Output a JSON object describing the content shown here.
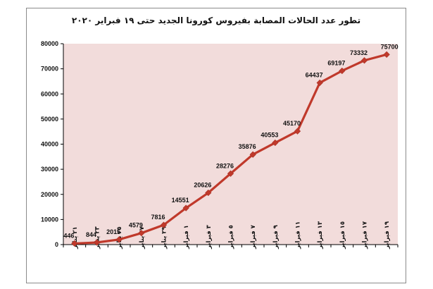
{
  "chart_data": {
    "type": "line",
    "title": "تطور عدد الحالات المصابة بفيروس كورونا الجديد حتى ١٩ فبراير ٢٠٢٠",
    "categories": [
      "٢١ يناير",
      "٢٣ يناير",
      "٢٥ يناير",
      "٢٧ يناير",
      "٢٩ يناير",
      "١ فبراير",
      "٣ فبراير",
      "٥ فبراير",
      "٧ فبراير",
      "٩ فبراير",
      "١١ فبراير",
      "١٣ فبراير",
      "١٥ فبراير",
      "١٧ فبراير",
      "١٩ فبراير"
    ],
    "values": [
      446,
      844,
      2015,
      4579,
      7816,
      14551,
      20626,
      28276,
      35876,
      40553,
      45170,
      64437,
      69197,
      73332,
      75700
    ],
    "data_labels": [
      "446",
      "844",
      "2015",
      "4579",
      "7816",
      "14551",
      "20626",
      "28276",
      "35876",
      "40553",
      "45170",
      "64437",
      "69197",
      "73332",
      "75700"
    ],
    "ylim": [
      0,
      80000
    ],
    "yticks": [
      0,
      10000,
      20000,
      30000,
      40000,
      50000,
      60000,
      70000,
      80000
    ],
    "ytick_labels": [
      "0",
      "10000",
      "20000",
      "30000",
      "40000",
      "50000",
      "60000",
      "70000",
      "80000"
    ],
    "xlabel": "",
    "ylabel": "",
    "grid": false,
    "legend": "none",
    "colors": {
      "line": "#c0392b",
      "marker": "#c0392b",
      "plot_bg": "#f2dcdb",
      "axis": "#000000"
    }
  }
}
